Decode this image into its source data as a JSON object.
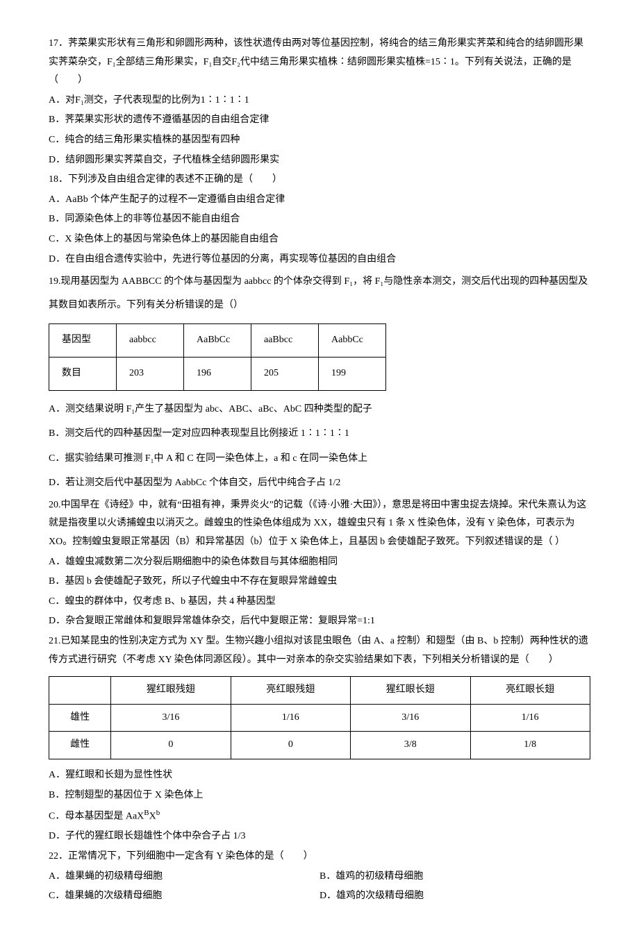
{
  "q17": {
    "stem": "17．荠菜果实形状有三角形和卵圆形两种，该性状遗传由两对等位基因控制，将纯合的结三角形果实荠菜和纯合的结卵圆形果实荠菜杂交，F₁全部结三角形果实，F₁自交F₂代中结三角形果实植株∶结卵圆形果实植株=15∶1。下列有关说法，正确的是（　　）",
    "a": "A．对F₁测交，子代表现型的比例为1∶1∶1∶1",
    "b": "B．荠菜果实形状的遗传不遵循基因的自由组合定律",
    "c": "C．纯合的结三角形果实植株的基因型有四种",
    "d": "D．结卵圆形果实荠菜自交，子代植株全结卵圆形果实"
  },
  "q18": {
    "stem": "18．下列涉及自由组合定律的表述不正确的是（　　）",
    "a": "A．AaBb 个体产生配子的过程不一定遵循自由组合定律",
    "b": "B．同源染色体上的非等位基因不能自由组合",
    "c": "C．X 染色体上的基因与常染色体上的基因能自由组合",
    "d": "D．在自由组合遗传实验中，先进行等位基因的分离，再实现等位基因的自由组合"
  },
  "q19": {
    "stem": "19.现用基因型为 AABBCC 的个体与基因型为 aabbcc 的个体杂交得到 F₁，将 F₁与隐性亲本测交，测交后代出现的四种基因型及其数目如表所示。下列有关分析错误的是（）",
    "table": {
      "r1": [
        "基因型",
        "aabbcc",
        "AaBbCc",
        "aaBbcc",
        "AabbCc"
      ],
      "r2": [
        "数目",
        "203",
        "196",
        "205",
        "199"
      ]
    },
    "a": "A．测交结果说明 F₁产生了基因型为 abc、ABC、aBc、AbC 四种类型的配子",
    "b": "B．测交后代的四种基因型一定对应四种表现型且比例接近 1∶1∶1∶1",
    "c": "C．据实验结果可推测 F₁中 A 和 C 在同一染色体上，a 和 c 在同一染色体上",
    "d": "D．若让测交后代中基因型为 AabbCc 个体自交，后代中纯合子占 1/2"
  },
  "q20": {
    "stem": "20.中国早在《诗经》中，就有“田祖有神，秉畀炎火”的记载（《诗·小雅·大田》），意思是将田中害虫捉去烧掉。宋代朱熹认为这就是指夜里以火诱捕蝗虫以消灭之。雌蝗虫的性染色体组成为 XX，雄蝗虫只有 1 条 X 性染色体，没有 Y 染色体，可表示为 XO。控制蝗虫复眼正常基因（B）和异常基因（b）位于 X 染色体上，且基因 b 会使雄配子致死。下列叙述错误的是（ ）",
    "a": "A．雄蝗虫减数第二次分裂后期细胞中的染色体数目与其体细胞相同",
    "b": "B．基因 b 会使雄配子致死，所以子代蝗虫中不存在复眼异常雌蝗虫",
    "c": "C．蝗虫的群体中，仅考虑 B、b 基因，共 4 种基因型",
    "d": "D．杂合复眼正常雌体和复眼异常雄体杂交，后代中复眼正常：复眼异常=1:1"
  },
  "q21": {
    "stem": "21.已知某昆虫的性别决定方式为 XY 型。生物兴趣小组拟对该昆虫眼色（由 A、a 控制）和翅型（由 B、b 控制）两种性状的遗传方式进行研究（不考虑 XY 染色体同源区段）。其中一对亲本的杂交实验结果如下表，下列相关分析错误的是（　　）",
    "table": {
      "h": [
        "",
        "猩红眼残翅",
        "亮红眼残翅",
        "猩红眼长翅",
        "亮红眼长翅"
      ],
      "r1": [
        "雄性",
        "3/16",
        "1/16",
        "3/16",
        "1/16"
      ],
      "r2": [
        "雌性",
        "0",
        "0",
        "3/8",
        "1/8"
      ]
    },
    "a": "A．猩红眼和长翅为显性性状",
    "b": "B．控制翅型的基因位于 X 染色体上",
    "c_pre": "C．母本基因型是 AaX",
    "c_sup1": "B",
    "c_mid": "X",
    "c_sup2": "b",
    "d": "D．子代的猩红眼长翅雄性个体中杂合子占 1/3"
  },
  "q22": {
    "stem": "22．正常情况下，下列细胞中一定含有 Y 染色体的是（　　）",
    "a": "A．雄果蝇的初级精母细胞",
    "b": "B．雄鸡的初级精母细胞",
    "c": "C．雄果蝇的次级精母细胞",
    "d": "D．雄鸡的次级精母细胞"
  }
}
